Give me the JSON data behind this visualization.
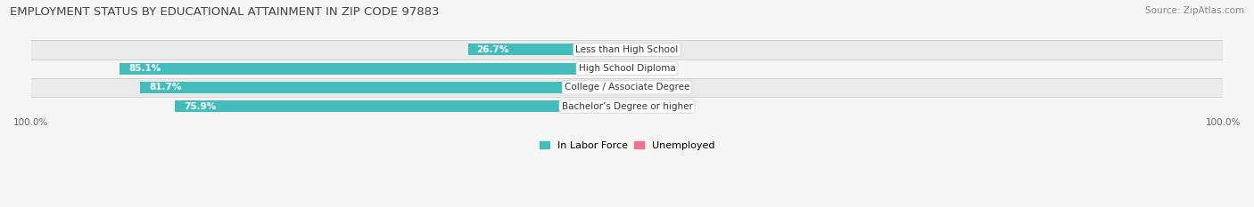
{
  "title": "EMPLOYMENT STATUS BY EDUCATIONAL ATTAINMENT IN ZIP CODE 97883",
  "source": "Source: ZipAtlas.com",
  "categories": [
    "Less than High School",
    "High School Diploma",
    "College / Associate Degree",
    "Bachelor’s Degree or higher"
  ],
  "labor_force": [
    26.7,
    85.1,
    81.7,
    75.9
  ],
  "unemployed": [
    0.0,
    0.0,
    2.5,
    0.0
  ],
  "labor_force_color": "#45BCBC",
  "unemployed_color": "#F07090",
  "unemployed_color_light": "#F5AABF",
  "row_bg_even": "#EAEAEA",
  "row_bg_odd": "#F5F5F5",
  "axis_label_left": "100.0%",
  "axis_label_right": "100.0%",
  "total_width": 100.0,
  "bar_height": 0.62,
  "figsize": [
    14.06,
    2.33
  ],
  "dpi": 100,
  "title_fontsize": 9.5,
  "source_fontsize": 7.5,
  "label_fontsize": 7.5,
  "tick_fontsize": 7.5,
  "legend_fontsize": 8,
  "legend_label_lf": "In Labor Force",
  "legend_label_unemp": "Unemployed"
}
